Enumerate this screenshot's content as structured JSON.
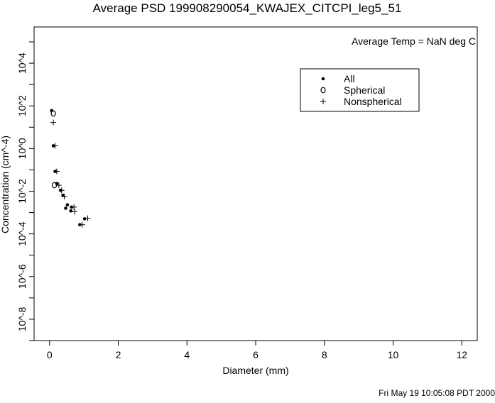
{
  "chart_data": {
    "type": "scatter",
    "title": "Average PSD 199908290054_KWAJEX_CITCPI_leg5_51",
    "xlabel": "Diameter (mm)",
    "ylabel": "Concentration (cm^-4)",
    "annotation": "Average Temp = NaN deg C",
    "timestamp": "Fri May 19 10:05:08 PDT 2000",
    "xlim": [
      -0.45,
      12.45
    ],
    "ylim": [
      1e-09,
      500000.0
    ],
    "yscale": "log",
    "x_ticks": [
      0,
      2,
      4,
      6,
      8,
      10,
      12
    ],
    "x_tick_labels": [
      "0",
      "2",
      "4",
      "6",
      "8",
      "10",
      "12"
    ],
    "y_ticks": [
      10000.0,
      100.0,
      1.0,
      0.01,
      0.0001,
      1e-06,
      1e-08
    ],
    "y_tick_labels": [
      "10^4",
      "10^2",
      "10^0",
      "10^-2",
      "10^-4",
      "10^-6",
      "10^-8"
    ],
    "grid": false,
    "legend_position": "top-right",
    "series": [
      {
        "name": "All",
        "marker": "dot",
        "x": [
          0.06,
          0.11,
          0.16,
          0.21,
          0.32,
          0.39,
          0.52,
          0.47,
          0.64,
          0.62,
          1.02,
          0.88
        ],
        "y": [
          60,
          1.35,
          0.085,
          0.023,
          0.011,
          0.0065,
          0.0023,
          0.0016,
          0.0018,
          0.0012,
          0.00051,
          0.00027
        ]
      },
      {
        "name": "Spherical",
        "marker": "circle",
        "x": [
          0.11,
          0.14
        ],
        "y": [
          44,
          0.019
        ]
      },
      {
        "name": "Nonspherical",
        "marker": "plus",
        "x": [
          0.11,
          0.16,
          0.21,
          0.27,
          0.35,
          0.43,
          0.71,
          0.73,
          1.11,
          0.95
        ],
        "y": [
          16.6,
          1.35,
          0.085,
          0.019,
          0.011,
          0.0056,
          0.0018,
          0.0011,
          0.00054,
          0.00027
        ]
      }
    ]
  }
}
